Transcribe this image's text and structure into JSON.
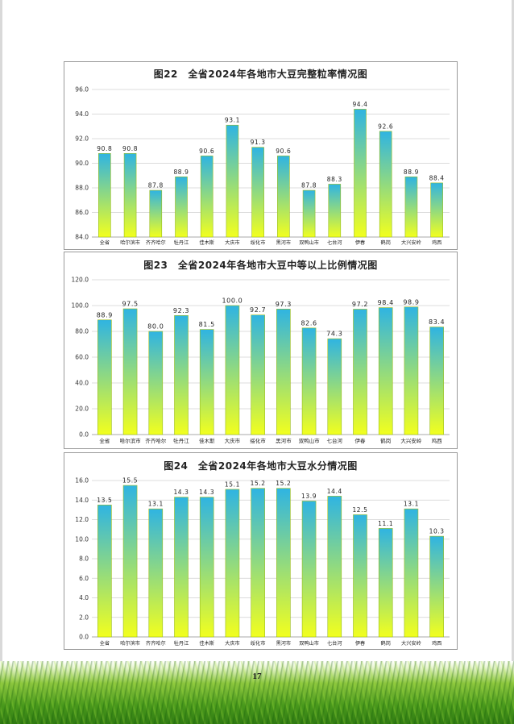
{
  "page_number": "17",
  "colors": {
    "bar_top": "#2fb4e2",
    "bar_bottom": "#f2ff1e",
    "bar_edge": "#9bbd1a",
    "grid": "#d0d0d0"
  },
  "chart_data": [
    {
      "type": "bar",
      "title": "图22　全省2024年各地市大豆完整粒率情况图",
      "categories": [
        "全省",
        "哈尔滨市",
        "齐齐哈尔",
        "牡丹江",
        "佳木斯",
        "大庆市",
        "绥化市",
        "黑河市",
        "双鸭山市",
        "七台河",
        "伊春",
        "鹤岗",
        "大兴安岭",
        "鸡西"
      ],
      "values": [
        90.8,
        90.8,
        87.8,
        88.9,
        90.6,
        93.1,
        91.3,
        90.6,
        87.8,
        88.3,
        94.4,
        92.6,
        88.9,
        88.4
      ],
      "value_labels": [
        "90.8",
        "90.8",
        "87.8",
        "88.9",
        "90.6",
        "93.1",
        "91.3",
        "90.6",
        "87.8",
        "88.3",
        "94.4",
        "92.6",
        "88.9",
        "88.4"
      ],
      "ylim": [
        84.0,
        96.0
      ],
      "yticks": [
        "84.0",
        "86.0",
        "88.0",
        "90.0",
        "92.0",
        "94.0",
        "96.0"
      ],
      "grid": true
    },
    {
      "type": "bar",
      "title": "图23　全省2024年各地市大豆中等以上比例情况图",
      "categories": [
        "全省",
        "哈尔滨市",
        "齐齐哈尔",
        "牡丹江",
        "佳木斯",
        "大庆市",
        "绥化市",
        "黑河市",
        "双鸭山市",
        "七台河",
        "伊春",
        "鹤岗",
        "大兴安岭",
        "鸡西"
      ],
      "values": [
        88.9,
        97.5,
        80.0,
        92.3,
        81.5,
        100.0,
        92.7,
        97.3,
        82.6,
        74.3,
        97.2,
        98.4,
        98.9,
        83.4
      ],
      "value_labels": [
        "88.9",
        "97.5",
        "80.0",
        "92.3",
        "81.5",
        "100.0",
        "92.7",
        "97.3",
        "82.6",
        "74.3",
        "97.2",
        "98.4",
        "98.9",
        "83.4"
      ],
      "ylim": [
        0.0,
        120.0
      ],
      "yticks": [
        "0.0",
        "20.0",
        "40.0",
        "60.0",
        "80.0",
        "100.0",
        "120.0"
      ],
      "grid": true
    },
    {
      "type": "bar",
      "title": "图24　全省2024年各地市大豆水分情况图",
      "categories": [
        "全省",
        "哈尔滨市",
        "齐齐哈尔",
        "牡丹江",
        "佳木斯",
        "大庆市",
        "绥化市",
        "黑河市",
        "双鸭山市",
        "七台河",
        "伊春",
        "鹤岗",
        "大兴安岭",
        "鸡西"
      ],
      "values": [
        13.5,
        15.5,
        13.1,
        14.3,
        14.3,
        15.1,
        15.2,
        15.2,
        13.9,
        14.4,
        12.5,
        11.1,
        13.1,
        10.3
      ],
      "value_labels": [
        "13.5",
        "15.5",
        "13.1",
        "14.3",
        "14.3",
        "15.1",
        "15.2",
        "15.2",
        "13.9",
        "14.4",
        "12.5",
        "11.1",
        "13.1",
        "10.3"
      ],
      "ylim": [
        0.0,
        16.0
      ],
      "yticks": [
        "0.0",
        "2.0",
        "4.0",
        "6.0",
        "8.0",
        "10.0",
        "12.0",
        "14.0",
        "16.0"
      ],
      "grid": true
    }
  ]
}
